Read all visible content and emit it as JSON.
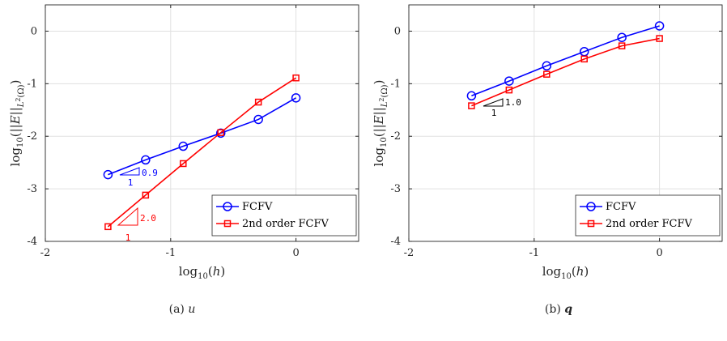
{
  "chart_data": [
    {
      "type": "line",
      "caption": "(a) u",
      "caption_prefix": "(a)",
      "caption_var": "u",
      "xlabel": "log10(h)",
      "ylabel": "log10(||E||L2(Ω))",
      "xlim": [
        -2,
        0.5
      ],
      "ylim": [
        -4,
        0.5
      ],
      "xticks": [
        -2,
        -1,
        0
      ],
      "yticks": [
        0,
        -1,
        -2,
        -3,
        -4
      ],
      "grid": true,
      "legend": "bottom-right",
      "series": [
        {
          "name": "FCFV",
          "color": "#0000ff",
          "marker": "circle",
          "x": [
            -1.5,
            -1.2,
            -0.9,
            -0.6,
            -0.3,
            0.0
          ],
          "y": [
            -2.73,
            -2.45,
            -2.19,
            -1.94,
            -1.68,
            -1.27
          ]
        },
        {
          "name": "2nd order FCFV",
          "color": "#ff0000",
          "marker": "square",
          "x": [
            -1.5,
            -1.2,
            -0.9,
            -0.6,
            -0.3,
            0.0
          ],
          "y": [
            -3.72,
            -3.12,
            -2.52,
            -1.93,
            -1.35,
            -0.89
          ]
        }
      ],
      "slope_triangles": [
        {
          "color": "#0000ff",
          "rise": "0.9",
          "run": "1"
        },
        {
          "color": "#ff0000",
          "rise": "2.0",
          "run": "1"
        }
      ]
    },
    {
      "type": "line",
      "caption": "(b) q",
      "caption_prefix": "(b)",
      "caption_var": "q",
      "xlabel": "log10(h)",
      "ylabel": "log10(||E||L2(Ω))",
      "xlim": [
        -2,
        0.5
      ],
      "ylim": [
        -4,
        0.5
      ],
      "xticks": [
        -2,
        -1,
        0
      ],
      "yticks": [
        0,
        -1,
        -2,
        -3,
        -4
      ],
      "grid": true,
      "legend": "bottom-right",
      "series": [
        {
          "name": "FCFV",
          "color": "#0000ff",
          "marker": "circle",
          "x": [
            -1.5,
            -1.2,
            -0.9,
            -0.6,
            -0.3,
            0.0
          ],
          "y": [
            -1.23,
            -0.95,
            -0.66,
            -0.39,
            -0.12,
            0.1
          ]
        },
        {
          "name": "2nd order FCFV",
          "color": "#ff0000",
          "marker": "square",
          "x": [
            -1.5,
            -1.2,
            -0.9,
            -0.6,
            -0.3,
            0.0
          ],
          "y": [
            -1.42,
            -1.12,
            -0.82,
            -0.53,
            -0.28,
            -0.14
          ]
        }
      ],
      "slope_triangles": [
        {
          "color": "#000000",
          "rise": "1.0",
          "run": "1"
        }
      ]
    }
  ]
}
